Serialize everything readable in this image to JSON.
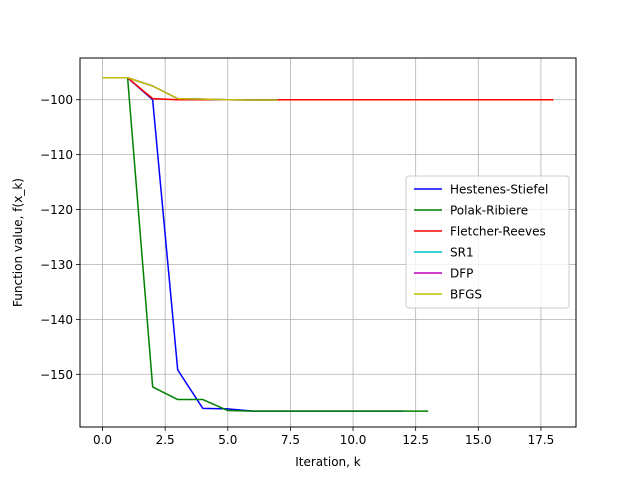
{
  "chart_data": {
    "type": "line",
    "title": "",
    "xlabel": "Iteration, k",
    "ylabel": "Function value, f(x_k)",
    "xlim": [
      -0.9,
      18.9
    ],
    "ylim": [
      -159.6,
      -92.4
    ],
    "xticks": [
      0.0,
      2.5,
      5.0,
      7.5,
      10.0,
      12.5,
      15.0,
      17.5
    ],
    "xtick_labels": [
      "0.0",
      "2.5",
      "5.0",
      "7.5",
      "10.0",
      "12.5",
      "15.0",
      "17.5"
    ],
    "yticks": [
      -150,
      -140,
      -130,
      -120,
      -110,
      -100
    ],
    "ytick_labels": [
      "−150",
      "−140",
      "−130",
      "−120",
      "−110",
      "−100"
    ],
    "grid": true,
    "legend_position": "center-right",
    "series": [
      {
        "name": "Hestenes-Stiefel",
        "color": "#0000ff",
        "x": [
          0,
          1,
          2,
          3,
          4,
          5,
          6,
          7,
          8,
          9,
          10,
          11,
          12
        ],
        "y": [
          -96,
          -96,
          -100,
          -149.2,
          -156.2,
          -156.3,
          -156.7,
          -156.7,
          -156.7,
          -156.7,
          -156.7,
          -156.7,
          -156.7
        ]
      },
      {
        "name": "Polak-Ribiere",
        "color": "#008000",
        "x": [
          0,
          1,
          2,
          3,
          4,
          5,
          6,
          7,
          8,
          9,
          10,
          11,
          12,
          13
        ],
        "y": [
          -96,
          -96,
          -152.3,
          -154.6,
          -154.6,
          -156.6,
          -156.7,
          -156.7,
          -156.7,
          -156.7,
          -156.7,
          -156.7,
          -156.7,
          -156.7
        ]
      },
      {
        "name": "Fletcher-Reeves",
        "color": "#ff0000",
        "x": [
          0,
          1,
          2,
          3,
          4,
          5,
          6,
          7,
          8,
          9,
          10,
          11,
          12,
          13,
          14,
          15,
          16,
          17,
          18
        ],
        "y": [
          -96,
          -96,
          -99.8,
          -100,
          -100,
          -100,
          -100,
          -100,
          -100,
          -100,
          -100,
          -100,
          -100,
          -100,
          -100,
          -100,
          -100,
          -100,
          -100
        ]
      },
      {
        "name": "SR1",
        "color": "#00bfbf",
        "x": [
          0,
          1,
          2,
          3,
          4,
          5,
          6,
          7
        ],
        "y": [
          -96,
          -96,
          -97.5,
          -99.8,
          -99.9,
          -100,
          -100.05,
          -100.05
        ]
      },
      {
        "name": "DFP",
        "color": "#bf00bf",
        "x": [
          0,
          1,
          2,
          3,
          4,
          5,
          6,
          7
        ],
        "y": [
          -96,
          -96,
          -97.5,
          -99.8,
          -99.9,
          -100,
          -100.05,
          -100.05
        ]
      },
      {
        "name": "BFGS",
        "color": "#bfbf00",
        "x": [
          0,
          1,
          2,
          3,
          4,
          5,
          6,
          7
        ],
        "y": [
          -96,
          -96,
          -97.5,
          -99.8,
          -99.9,
          -100,
          -100.05,
          -100.05
        ]
      }
    ]
  }
}
